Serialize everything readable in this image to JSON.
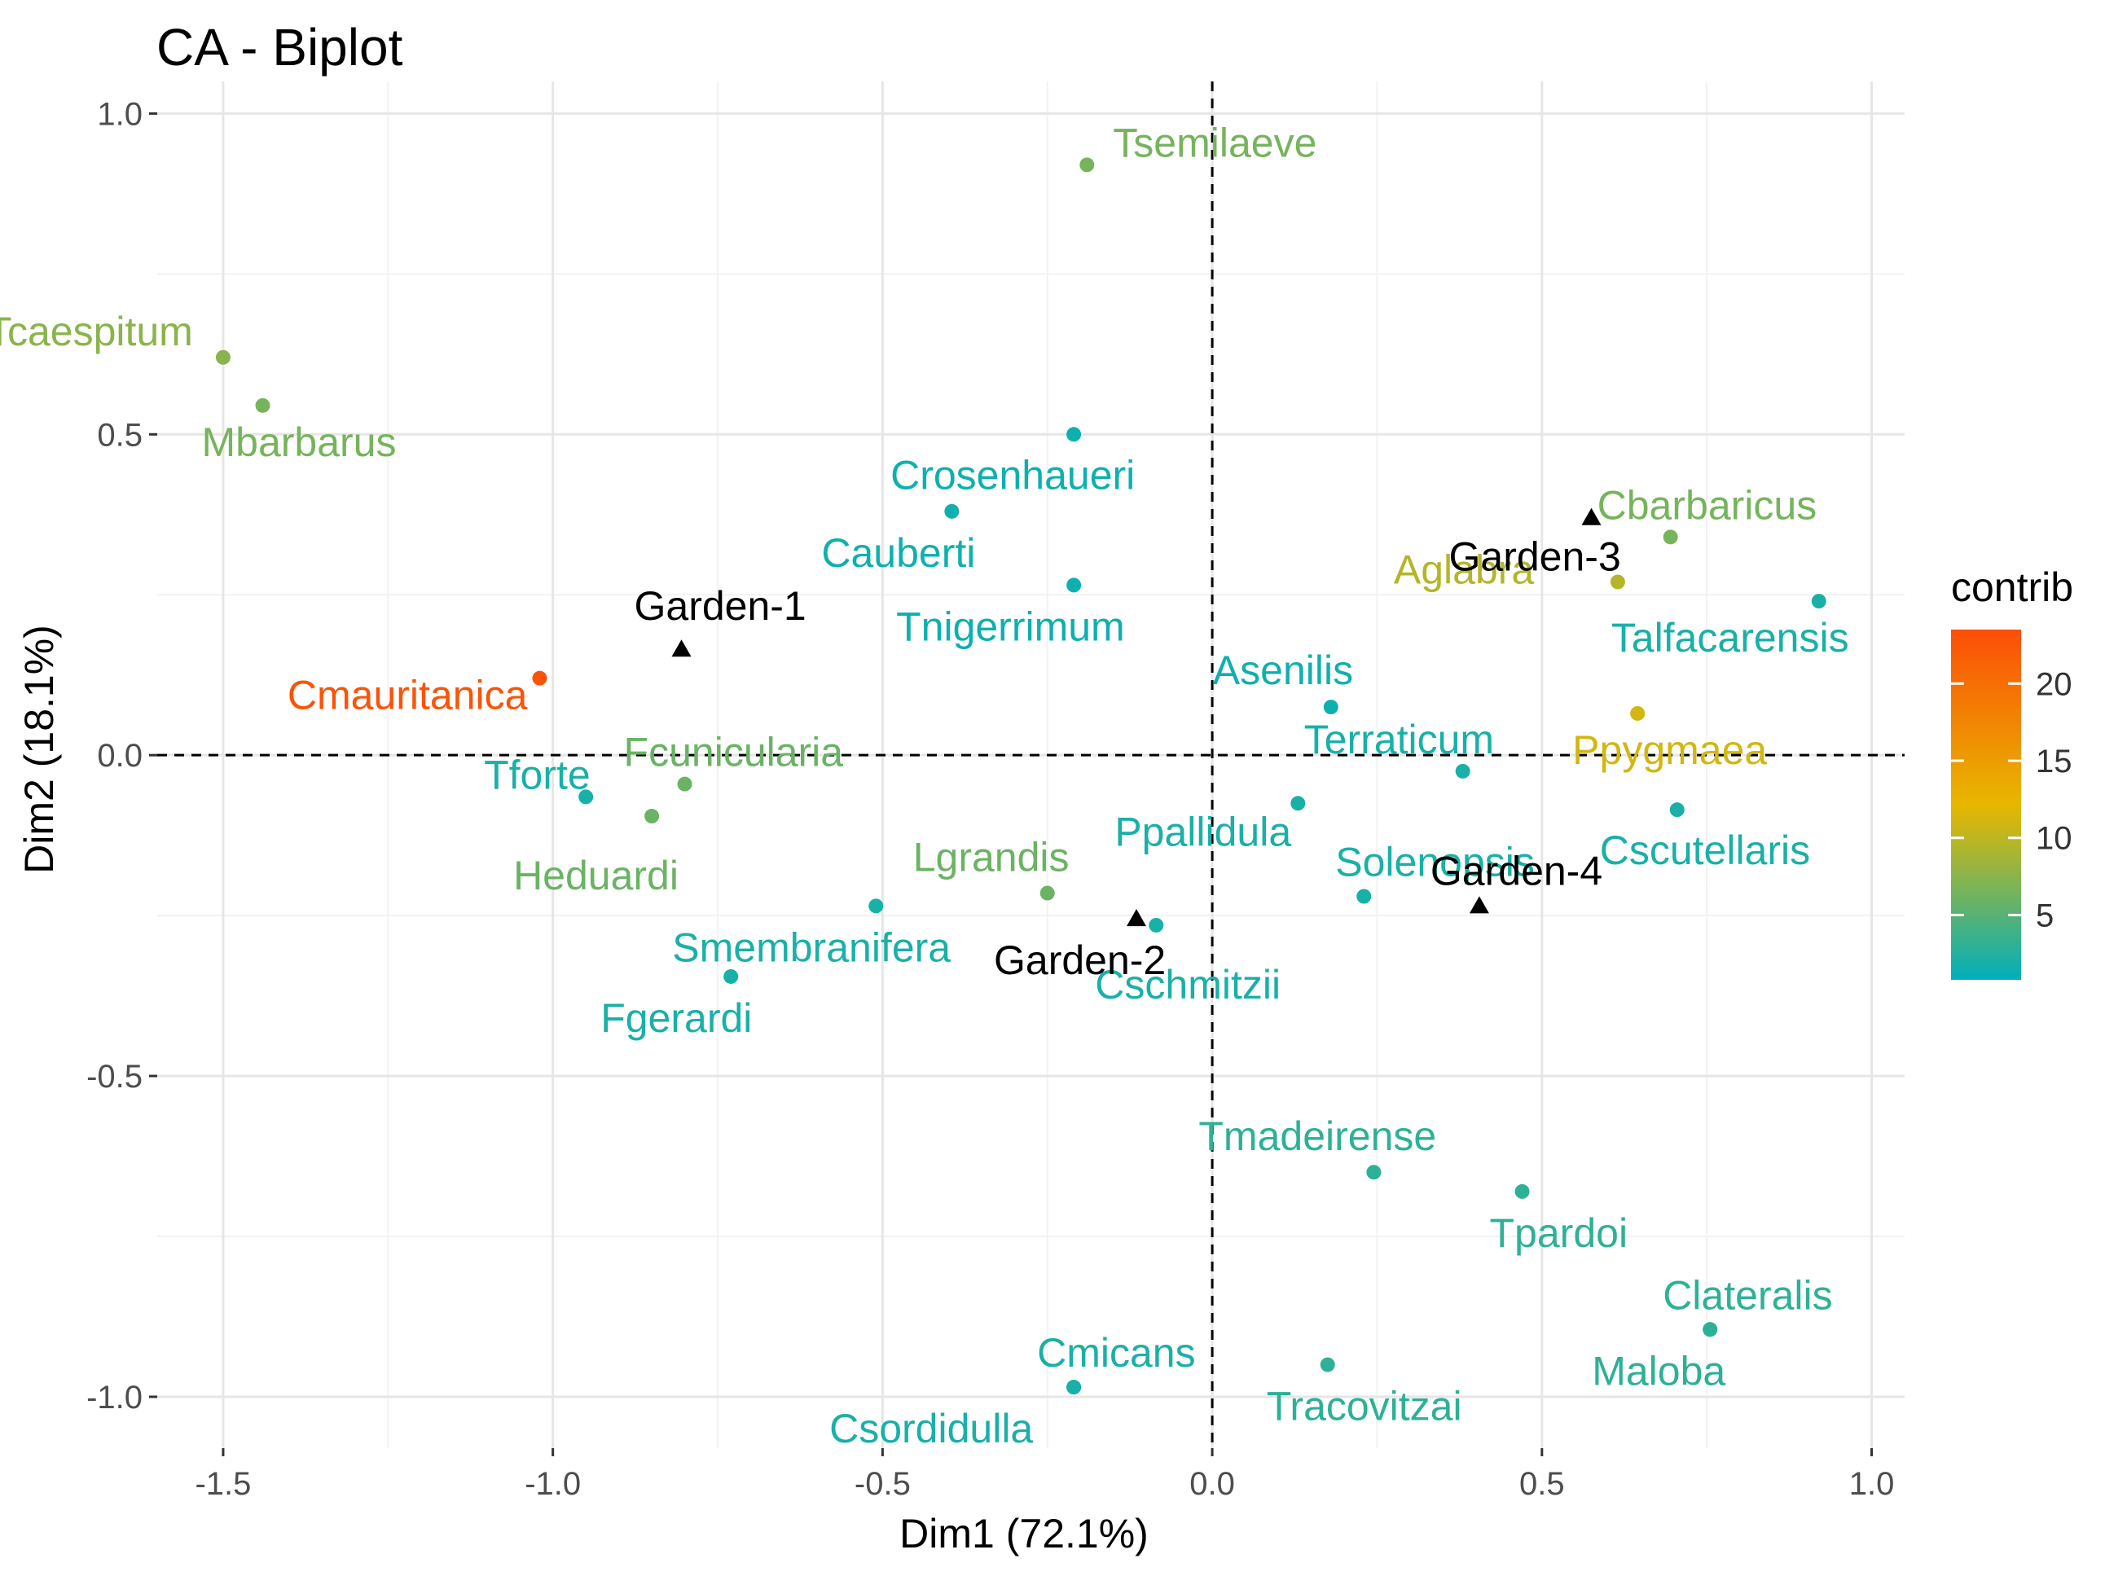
{
  "chart_data": {
    "type": "scatter",
    "title": "CA - Biplot",
    "xlabel": "Dim1 (72.1%)",
    "ylabel": "Dim2 (18.1%)",
    "xlim": [
      -1.6,
      1.05
    ],
    "ylim": [
      -1.08,
      1.05
    ],
    "x_ticks": [
      -1.5,
      -1.0,
      -0.5,
      0.0,
      0.5,
      1.0
    ],
    "x_tick_labels": [
      "-1.5",
      "-1.0",
      "-0.5",
      "0.0",
      "0.5",
      "1.0"
    ],
    "y_ticks": [
      -1.0,
      -0.5,
      0.0,
      0.5,
      1.0
    ],
    "y_tick_labels": [
      "-1.0",
      "-0.5",
      "0.0",
      "0.5",
      "1.0"
    ],
    "grid": true,
    "reference_lines": {
      "x": 0,
      "y": 0,
      "style": "dashed"
    },
    "legend": {
      "title": "contrib",
      "placement": "right",
      "min": 0.8,
      "max": 23.5,
      "ticks": [
        5,
        10,
        15,
        20
      ],
      "tick_labels": [
        "5",
        "10",
        "15",
        "20"
      ],
      "colors": {
        "low": "#00AFBB",
        "mid": "#E7B800",
        "high": "#FC4E07"
      },
      "mid_value": 12
    },
    "series": [
      {
        "name": "row points (species)",
        "marker": "circle",
        "points": [
          {
            "label": "Tsemilaeve",
            "x": -0.19,
            "y": 0.92,
            "contrib": 6.5
          },
          {
            "label": "Tcaespitum",
            "x": -1.5,
            "y": 0.62,
            "contrib": 7.5
          },
          {
            "label": "Mbarbarus",
            "x": -1.44,
            "y": 0.545,
            "contrib": 6.5
          },
          {
            "label": "Crosenhaueri",
            "x": -0.21,
            "y": 0.5,
            "contrib": 1.5
          },
          {
            "label": "Cauberti",
            "x": -0.395,
            "y": 0.38,
            "contrib": 1.5
          },
          {
            "label": "Tnigerrimum",
            "x": -0.21,
            "y": 0.265,
            "contrib": 1.5
          },
          {
            "label": "Cbarbaricus",
            "x": 0.695,
            "y": 0.34,
            "contrib": 6.5
          },
          {
            "label": "Aglabra",
            "x": 0.615,
            "y": 0.27,
            "contrib": 9.5
          },
          {
            "label": "Talfacarensis",
            "x": 0.92,
            "y": 0.24,
            "contrib": 2.0
          },
          {
            "label": "Cmauritanica",
            "x": -1.02,
            "y": 0.12,
            "contrib": 23.0
          },
          {
            "label": "Asenilis",
            "x": 0.18,
            "y": 0.075,
            "contrib": 1.5
          },
          {
            "label": "Terraticum",
            "x": 0.38,
            "y": -0.025,
            "contrib": 2.0
          },
          {
            "label": "Ppygmaea",
            "x": 0.645,
            "y": 0.065,
            "contrib": 11.0
          },
          {
            "label": "Fcunicularia",
            "x": -0.8,
            "y": -0.045,
            "contrib": 6.0
          },
          {
            "label": "Tforte",
            "x": -0.95,
            "y": -0.065,
            "contrib": 2.0
          },
          {
            "label": "Heduardi",
            "x": -0.85,
            "y": -0.095,
            "contrib": 6.0
          },
          {
            "label": "Ppallidula",
            "x": 0.13,
            "y": -0.075,
            "contrib": 2.0
          },
          {
            "label": "Solenopsis",
            "x": 0.23,
            "y": -0.22,
            "contrib": 2.0
          },
          {
            "label": "Cscutellaris",
            "x": 0.705,
            "y": -0.085,
            "contrib": 2.0
          },
          {
            "label": "Lgrandis",
            "x": -0.25,
            "y": -0.215,
            "contrib": 6.0
          },
          {
            "label": "Smembranifera",
            "x": -0.51,
            "y": -0.235,
            "contrib": 2.0
          },
          {
            "label": "Cschmitzii",
            "x": -0.085,
            "y": -0.265,
            "contrib": 2.0
          },
          {
            "label": "Fgerardi",
            "x": -0.73,
            "y": -0.345,
            "contrib": 2.0
          },
          {
            "label": "Tmadeirense",
            "x": 0.245,
            "y": -0.65,
            "contrib": 3.0
          },
          {
            "label": "Tpardoi",
            "x": 0.47,
            "y": -0.68,
            "contrib": 3.0
          },
          {
            "label": "Clateralis",
            "x": 0.755,
            "y": -0.895,
            "contrib": 3.0
          },
          {
            "label": "Maloba",
            "x": 0.755,
            "y": -0.895,
            "contrib": 3.0
          },
          {
            "label": "Cmicans",
            "x": -0.21,
            "y": -0.985,
            "contrib": 2.0
          },
          {
            "label": "Csordidulla",
            "x": -0.21,
            "y": -0.985,
            "contrib": 2.0
          },
          {
            "label": "Tracovitzai",
            "x": 0.175,
            "y": -0.95,
            "contrib": 3.0
          }
        ]
      },
      {
        "name": "column points (gardens)",
        "marker": "triangle",
        "color": "#000000",
        "points": [
          {
            "label": "Garden-1",
            "x": -0.805,
            "y": 0.165
          },
          {
            "label": "Garden-2",
            "x": -0.115,
            "y": -0.255
          },
          {
            "label": "Garden-3",
            "x": 0.575,
            "y": 0.37
          },
          {
            "label": "Garden-4",
            "x": 0.405,
            "y": -0.235
          }
        ]
      }
    ]
  }
}
